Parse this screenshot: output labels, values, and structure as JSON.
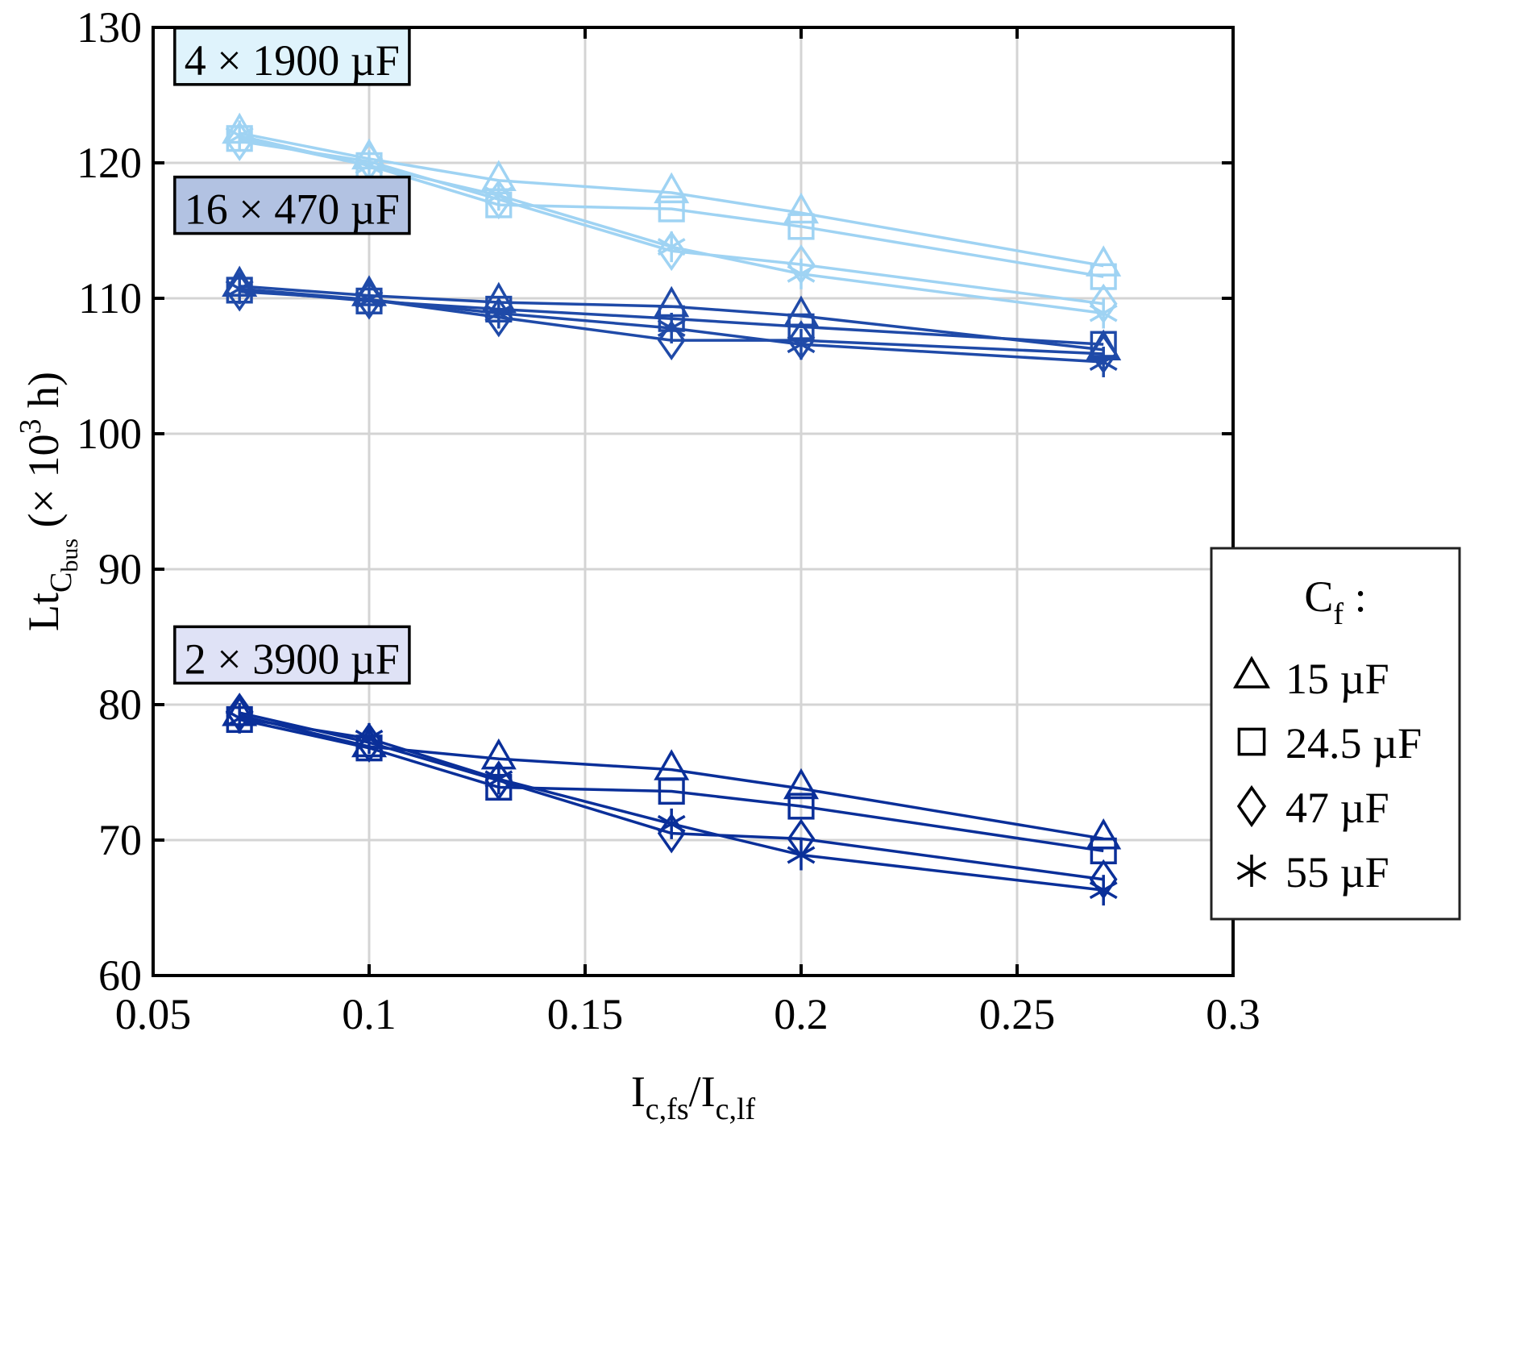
{
  "chart_data": {
    "type": "line",
    "xlabel": {
      "main": "I",
      "sub1": "c,fs",
      "sep": "/I",
      "sub2": "c,lf"
    },
    "ylabel": {
      "main": "Lt",
      "sub": "C",
      "subsub": "bus",
      "paren_open": " (× 10",
      "sup": "3",
      "paren_close": " h)"
    },
    "xlim": [
      0.05,
      0.3
    ],
    "ylim": [
      60,
      130
    ],
    "xticks": [
      0.05,
      0.1,
      0.15,
      0.2,
      0.25,
      0.3
    ],
    "xtick_labels": [
      "0.05",
      "0.1",
      "0.15",
      "0.2",
      "0.25",
      "0.3"
    ],
    "yticks": [
      60,
      70,
      80,
      90,
      100,
      110,
      120,
      130
    ],
    "ytick_labels": [
      "60",
      "70",
      "80",
      "90",
      "100",
      "110",
      "120",
      "130"
    ],
    "grid": true,
    "x": [
      0.07,
      0.1,
      0.13,
      0.17,
      0.2,
      0.27
    ],
    "legend": {
      "title": "C",
      "title_sub": "f",
      "title_suffix": " :",
      "placement": "right",
      "entries": [
        {
          "marker": "triangle",
          "label": "15 µF"
        },
        {
          "marker": "square",
          "label": "24.5 µF"
        },
        {
          "marker": "diamond",
          "label": "47 µF"
        },
        {
          "marker": "asterisk",
          "label": "55 µF"
        }
      ]
    },
    "groups": [
      {
        "label": "4 × 1900 µF",
        "color": "#9fd3f3",
        "label_bg": "#dff3fc",
        "label_anchor": {
          "x": 0.055,
          "y": 126.5
        },
        "series": [
          {
            "name": "15 µF",
            "marker": "triangle",
            "values": [
              122.2,
              120.3,
              118.7,
              117.8,
              116.3,
              112.4
            ]
          },
          {
            "name": "24.5 µF",
            "marker": "square",
            "values": [
              121.8,
              119.8,
              116.9,
              116.6,
              115.3,
              111.6
            ]
          },
          {
            "name": "47 µF",
            "marker": "diamond",
            "values": [
              121.6,
              120.1,
              117.3,
              113.5,
              112.5,
              109.6
            ]
          },
          {
            "name": "55 µF",
            "marker": "asterisk",
            "values": [
              122.0,
              119.8,
              117.6,
              113.8,
              111.8,
              108.9
            ]
          }
        ]
      },
      {
        "label": "16 × 470 µF",
        "color": "#1f4aa8",
        "label_bg": "#b2c2e2",
        "label_anchor": {
          "x": 0.055,
          "y": 115.5
        },
        "series": [
          {
            "name": "15 µF",
            "marker": "triangle",
            "values": [
              110.9,
              110.2,
              109.7,
              109.4,
              108.7,
              106.2
            ]
          },
          {
            "name": "24.5 µF",
            "marker": "square",
            "values": [
              110.6,
              109.8,
              109.2,
              108.5,
              107.9,
              106.6
            ]
          },
          {
            "name": "47 µF",
            "marker": "diamond",
            "values": [
              110.5,
              109.9,
              108.6,
              106.9,
              106.9,
              105.9
            ]
          },
          {
            "name": "55 µF",
            "marker": "asterisk",
            "values": [
              110.7,
              109.9,
              108.9,
              107.8,
              106.6,
              105.3
            ]
          }
        ]
      },
      {
        "label": "2 × 3900 µF",
        "color": "#0a2f99",
        "label_bg": "#dfe2f6",
        "label_anchor": {
          "x": 0.055,
          "y": 82.3
        },
        "series": [
          {
            "name": "15 µF",
            "marker": "triangle",
            "values": [
              79.2,
              76.9,
              76.0,
              75.2,
              73.8,
              70.1
            ]
          },
          {
            "name": "24.5 µF",
            "marker": "square",
            "values": [
              78.9,
              76.8,
              73.9,
              73.6,
              72.5,
              69.2
            ]
          },
          {
            "name": "47 µF",
            "marker": "diamond",
            "values": [
              79.4,
              77.2,
              74.4,
              70.5,
              70.1,
              67.1
            ]
          },
          {
            "name": "55 µF",
            "marker": "asterisk",
            "values": [
              79.0,
              77.5,
              74.5,
              71.2,
              68.9,
              66.3
            ]
          }
        ]
      }
    ]
  }
}
